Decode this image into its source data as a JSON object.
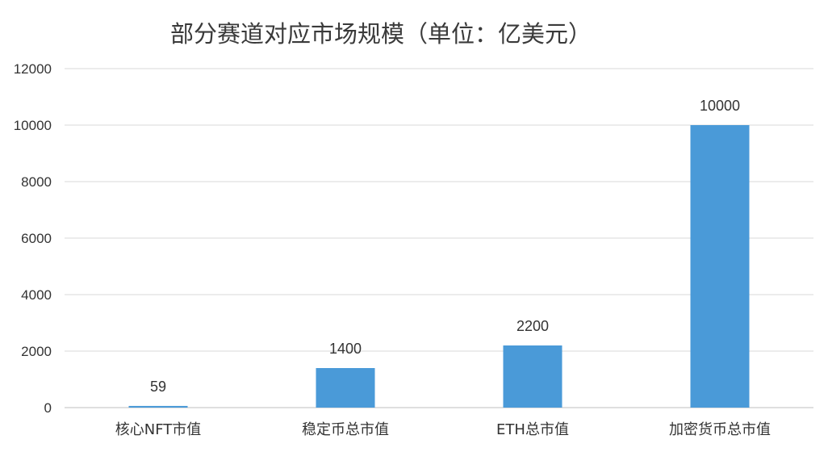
{
  "chart_data": {
    "type": "bar",
    "title": "部分赛道对应市场规模（单位：亿美元）",
    "categories": [
      "核心NFT市值",
      "稳定币总市值",
      "ETH总市值",
      "加密货币总市值"
    ],
    "values": [
      59,
      1400,
      2200,
      10000
    ],
    "data_labels": [
      "59",
      "1400",
      "2200",
      "10000"
    ],
    "yticks": [
      0,
      2000,
      4000,
      6000,
      8000,
      10000,
      12000
    ],
    "ylim": [
      0,
      12000
    ],
    "xlabel": "",
    "ylabel": "",
    "grid": true,
    "legend": false,
    "bar_color": "#4a9ad8"
  }
}
